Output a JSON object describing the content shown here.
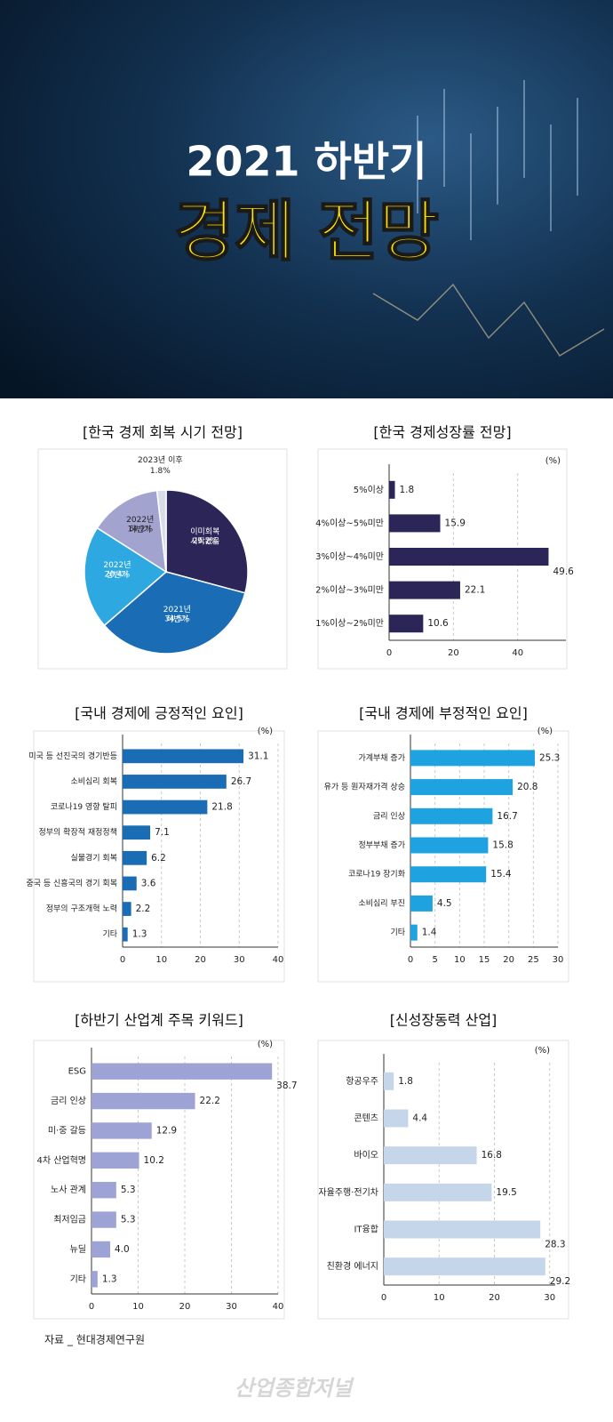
{
  "header": {
    "title_line1": "2021 하반기",
    "title_line2": "경제 전망"
  },
  "chart_data": [
    {
      "type": "pie",
      "title": "[한국 경제 회복 시기 전망]",
      "categories": [
        "이미회복 시작됐음",
        "2021년 하반기",
        "2022년 상반기",
        "2022년 하반기",
        "2023년 이후"
      ],
      "values": [
        29.2,
        34.5,
        20.4,
        14.2,
        1.8
      ],
      "value_labels": [
        "29.2%",
        "34.5%",
        "20.4%",
        "14.2%",
        "1.8%"
      ],
      "colors": [
        "#2b2657",
        "#1a6db5",
        "#2ea8e0",
        "#a3a3d0",
        "#d9dde8"
      ]
    },
    {
      "type": "hbar",
      "title": "[한국 경제성장률 전망]",
      "unit": "(%)",
      "categories": [
        "5%이상",
        "4%이상~5%미만",
        "3%이상~4%미만",
        "2%이상~3%미만",
        "1%이상~2%미만"
      ],
      "values": [
        1.8,
        15.9,
        49.6,
        22.1,
        10.6
      ],
      "color": "#2b2657",
      "xlim": [
        0,
        55
      ],
      "xticks": [
        0,
        20,
        40
      ],
      "grid": true
    },
    {
      "type": "hbar",
      "title": "[국내 경제에 긍정적인 요인]",
      "unit": "(%)",
      "categories": [
        "미국 등 선진국의 경기반등",
        "소비심리 회복",
        "코로나19 영향 탈피",
        "정부의 확장적 재정정책",
        "실물경기 회복",
        "중국 등 신흥국의 경기 회복",
        "정부의 구조개혁 노력",
        "기타"
      ],
      "values": [
        31.1,
        26.7,
        21.8,
        7.1,
        6.2,
        3.6,
        2.2,
        1.3
      ],
      "color": "#1a6db5",
      "xlim": [
        0,
        40
      ],
      "xticks": [
        0,
        10,
        20,
        30,
        40
      ],
      "grid": true
    },
    {
      "type": "hbar",
      "title": "[국내 경제에 부정적인 요인]",
      "unit": "(%)",
      "categories": [
        "가계부채 증가",
        "유가 등 원자재가격 상승",
        "금리 인상",
        "정부부채 증가",
        "코로나19 장기화",
        "소비심리 부진",
        "기타"
      ],
      "values": [
        25.3,
        20.8,
        16.7,
        15.8,
        15.4,
        4.5,
        1.4
      ],
      "color": "#1ea3e0",
      "xlim": [
        0,
        30
      ],
      "xticks": [
        0,
        5,
        10,
        15,
        20,
        25,
        30
      ],
      "grid": true
    },
    {
      "type": "hbar",
      "title": "[하반기 산업계 주목 키워드]",
      "unit": "(%)",
      "categories": [
        "ESG",
        "금리 인상",
        "미·중 갈등",
        "4차 산업혁명",
        "노사 관계",
        "최저임금",
        "뉴딜",
        "기타"
      ],
      "values": [
        38.7,
        22.2,
        12.9,
        10.2,
        5.3,
        5.3,
        4.0,
        1.3
      ],
      "value_labels": [
        "38.7",
        "22.2",
        "12.9",
        "10.2",
        "5.3",
        "5.3",
        "4.0",
        "1.3"
      ],
      "color": "#9da3d4",
      "xlim": [
        0,
        40
      ],
      "xticks": [
        0,
        10,
        20,
        30,
        40
      ],
      "grid": true
    },
    {
      "type": "hbar",
      "title": "[신성장동력 산업]",
      "unit": "(%)",
      "categories": [
        "항공우주",
        "콘텐츠",
        "바이오",
        "자율주행·전기차",
        "IT융합",
        "친환경 에너지"
      ],
      "values": [
        1.8,
        4.4,
        16.8,
        19.5,
        28.3,
        29.2
      ],
      "color": "#c5d5ea",
      "xlim": [
        0,
        31
      ],
      "xticks": [
        0,
        10,
        20,
        30
      ],
      "grid": true
    }
  ],
  "source": "자료 _ 현대경제연구원",
  "watermark": "산업종합저널"
}
